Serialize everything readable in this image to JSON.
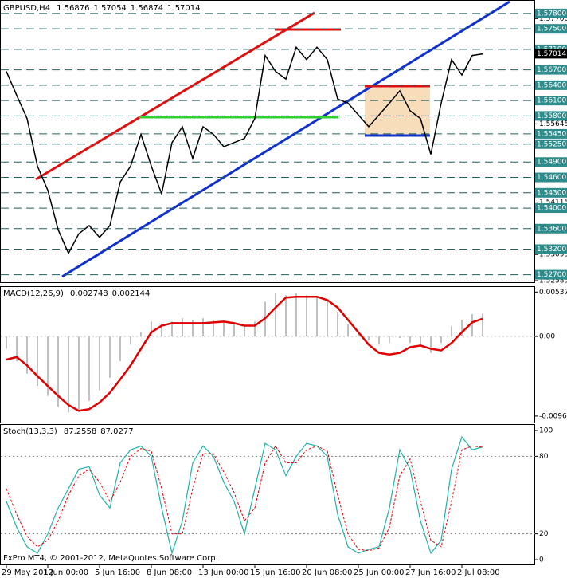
{
  "chart_data": [
    {
      "type": "line",
      "title": "GBPUSD,H4",
      "ohlc": [
        1.56876,
        1.57054,
        1.56874,
        1.57014
      ],
      "color": "#000000",
      "categories": [
        "29 May 2012",
        null,
        null,
        null,
        "1 Jun 00:00",
        null,
        null,
        null,
        null,
        "5 Jun 16:00",
        null,
        null,
        null,
        null,
        "8 Jun 08:00",
        null,
        null,
        null,
        null,
        "13 Jun 00:00",
        null,
        null,
        null,
        null,
        "15 Jun 16:00",
        null,
        null,
        null,
        null,
        "20 Jun 08:00",
        null,
        null,
        null,
        null,
        "25 Jun 00:00",
        null,
        null,
        null,
        null,
        "27 Jun 16:00",
        null,
        null,
        null,
        null,
        "2 Jul 08:00",
        null,
        null
      ],
      "values": [
        1.5667,
        1.562,
        1.5575,
        1.5482,
        1.5435,
        1.5358,
        1.5312,
        1.535,
        1.5366,
        1.5343,
        1.5366,
        1.5451,
        1.5482,
        1.5544,
        1.5482,
        1.5428,
        1.5528,
        1.5559,
        1.5497,
        1.5559,
        1.5544,
        1.552,
        1.5528,
        1.5536,
        1.5575,
        1.5698,
        1.5667,
        1.5652,
        1.5714,
        1.569,
        1.5714,
        1.569,
        1.5613,
        1.5605,
        1.5582,
        1.5559,
        1.5582,
        1.5605,
        1.5629,
        1.559,
        1.5575,
        1.5505,
        1.5605,
        1.569,
        1.566,
        1.5698,
        1.5701
      ],
      "ylim": [
        1.52585,
        1.58032
      ],
      "yticks": [
        {
          "value": 1.577,
          "label": "1.57700"
        },
        {
          "value": 1.55645,
          "label": "1.55645"
        },
        {
          "value": 1.54115,
          "label": "1.54115"
        },
        {
          "value": 1.53095,
          "label": "1.53095"
        },
        {
          "value": 1.52585,
          "label": "1.52585"
        }
      ],
      "level_color": "#2e8b8b",
      "levels": [
        {
          "value": 1.578,
          "label": "1.57800"
        },
        {
          "value": 1.575,
          "label": "1.57500"
        },
        {
          "value": 1.571,
          "label": "1.57100"
        },
        {
          "value": 1.567,
          "label": "1.56700"
        },
        {
          "value": 1.564,
          "label": "1.56400"
        },
        {
          "value": 1.561,
          "label": "1.56100"
        },
        {
          "value": 1.558,
          "label": "1.55800"
        },
        {
          "value": 1.5545,
          "label": "1.55450"
        },
        {
          "value": 1.5525,
          "label": "1.55250"
        },
        {
          "value": 1.549,
          "label": "1.54900"
        },
        {
          "value": 1.546,
          "label": "1.54600"
        },
        {
          "value": 1.543,
          "label": "1.54300"
        },
        {
          "value": 1.54,
          "label": "1.54000"
        },
        {
          "value": 1.536,
          "label": "1.53600"
        },
        {
          "value": 1.532,
          "label": "1.53200"
        },
        {
          "value": 1.527,
          "label": "1.52700"
        }
      ]
    },
    {
      "type": "macd",
      "title": "MACD(12,26,9)",
      "readout": [
        0.002748,
        0.002144
      ],
      "series": [
        {
          "name": "MACD",
          "color": "#c0c0c0",
          "values": [
            -0.0015,
            -0.003,
            -0.0045,
            -0.006,
            -0.0072,
            -0.0085,
            -0.0092,
            -0.0088,
            -0.0078,
            -0.0065,
            -0.005,
            -0.003,
            -0.001,
            0.0005,
            0.0018,
            0.0015,
            0.0018,
            0.0022,
            0.002,
            0.0022,
            0.002,
            0.0018,
            0.0015,
            0.0012,
            0.0018,
            0.0042,
            0.0052,
            0.005,
            0.0052,
            0.005,
            0.0048,
            0.0045,
            0.003,
            0.0015,
            0.0005,
            -0.0005,
            -0.001,
            -0.0008,
            -0.0002,
            -0.0008,
            -0.0012,
            -0.002,
            -0.0008,
            0.0012,
            0.002,
            0.0027,
            0.002748
          ]
        },
        {
          "name": "Signal",
          "color": "#e00000",
          "values": [
            -0.0028,
            -0.0025,
            -0.0035,
            -0.0048,
            -0.006,
            -0.0072,
            -0.0083,
            -0.009,
            -0.0088,
            -0.008,
            -0.0068,
            -0.0052,
            -0.0035,
            -0.0015,
            0.0005,
            0.0013,
            0.0016,
            0.0016,
            0.0016,
            0.0016,
            0.0017,
            0.0018,
            0.0016,
            0.0013,
            0.0013,
            0.0022,
            0.0035,
            0.0047,
            0.0048,
            0.0048,
            0.0048,
            0.0044,
            0.0035,
            0.002,
            0.0005,
            -0.001,
            -0.002,
            -0.0022,
            -0.002,
            -0.0013,
            -0.0011,
            -0.0015,
            -0.0017,
            -0.0008,
            0.0005,
            0.0017,
            0.002144
          ]
        }
      ],
      "ylim": [
        -0.01042,
        0.00598
      ],
      "yticks": [
        0.00537,
        {
          "value": 0,
          "label": "0.00"
        },
        -0.00964
      ]
    },
    {
      "type": "stochastic",
      "title": "Stoch(13,3,3)",
      "readout": [
        87.2558,
        87.0277
      ],
      "annotation": "FxPro MT4, © 2001-2012, MetaQuotes Software Corp.",
      "series": [
        {
          "name": "Main",
          "color": "#20b2aa",
          "values": [
            45,
            25,
            10,
            5,
            20,
            40,
            55,
            70,
            72,
            50,
            40,
            75,
            85,
            88,
            80,
            40,
            5,
            30,
            75,
            88,
            80,
            60,
            45,
            20,
            55,
            90,
            85,
            65,
            80,
            90,
            88,
            80,
            35,
            10,
            5,
            8,
            10,
            40,
            85,
            70,
            30,
            5,
            15,
            70,
            95,
            85,
            87.2558
          ]
        },
        {
          "name": "Signal",
          "color": "#e00000",
          "values": [
            55,
            35,
            18,
            10,
            15,
            30,
            50,
            65,
            70,
            60,
            45,
            60,
            80,
            86,
            84,
            55,
            20,
            20,
            55,
            82,
            82,
            68,
            52,
            30,
            40,
            75,
            88,
            75,
            75,
            85,
            88,
            84,
            50,
            20,
            8,
            7,
            9,
            25,
            65,
            78,
            45,
            15,
            10,
            45,
            85,
            88,
            87.0277
          ]
        }
      ],
      "ylim": [
        -3.7,
        104.3
      ],
      "yticks": [
        0,
        20,
        80,
        100
      ],
      "levels": [
        20,
        80
      ]
    }
  ]
}
